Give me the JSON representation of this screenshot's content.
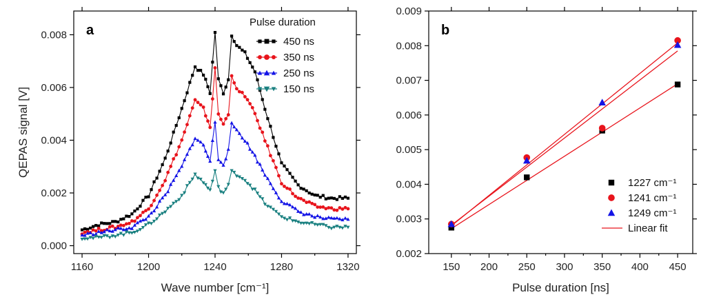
{
  "chart_data": [
    {
      "type": "line",
      "panel_label": "a",
      "xlabel": "Wave number [cm⁻¹]",
      "ylabel": "QEPAS signal [V]",
      "xlim": [
        1155,
        1325
      ],
      "ylim": [
        -0.0003,
        0.0089
      ],
      "xticks": [
        1160,
        1200,
        1240,
        1280,
        1320
      ],
      "yticks": [
        0.0,
        0.002,
        0.004,
        0.006,
        0.008
      ],
      "ytick_labels": [
        "0.000",
        "0.002",
        "0.004",
        "0.006",
        "0.008"
      ],
      "legend_title": "Pulse duration",
      "legend_position": "top-right",
      "series": [
        {
          "name": "450 ns",
          "color": "#000000",
          "marker": "square",
          "x": [
            1160,
            1170,
            1180,
            1190,
            1200,
            1210,
            1220,
            1228,
            1233,
            1237,
            1240,
            1242,
            1245,
            1248,
            1250,
            1253,
            1258,
            1264,
            1270,
            1280,
            1290,
            1300,
            1310,
            1320
          ],
          "y": [
            0.0006,
            0.0008,
            0.0009,
            0.0012,
            0.0019,
            0.0033,
            0.0052,
            0.0068,
            0.0065,
            0.0058,
            0.0081,
            0.0063,
            0.0058,
            0.0063,
            0.008,
            0.0076,
            0.0073,
            0.0066,
            0.0052,
            0.0031,
            0.0023,
            0.0019,
            0.0018,
            0.0018
          ]
        },
        {
          "name": "350 ns",
          "color": "#e8141c",
          "marker": "circle",
          "x": [
            1160,
            1170,
            1180,
            1190,
            1200,
            1210,
            1220,
            1228,
            1233,
            1237,
            1240,
            1242,
            1245,
            1248,
            1250,
            1253,
            1258,
            1264,
            1270,
            1280,
            1290,
            1300,
            1310,
            1320
          ],
          "y": [
            0.0005,
            0.0006,
            0.0007,
            0.0009,
            0.0014,
            0.0025,
            0.004,
            0.0055,
            0.0052,
            0.0045,
            0.0067,
            0.005,
            0.0046,
            0.005,
            0.0065,
            0.0059,
            0.0057,
            0.005,
            0.004,
            0.0024,
            0.0018,
            0.0015,
            0.0014,
            0.0014
          ]
        },
        {
          "name": "250 ns",
          "color": "#1414e6",
          "marker": "triangle-up",
          "x": [
            1160,
            1170,
            1180,
            1190,
            1200,
            1210,
            1220,
            1228,
            1233,
            1237,
            1240,
            1242,
            1245,
            1248,
            1250,
            1253,
            1258,
            1264,
            1270,
            1280,
            1290,
            1300,
            1310,
            1320
          ],
          "y": [
            0.0004,
            0.0005,
            0.0006,
            0.0007,
            0.0011,
            0.0019,
            0.003,
            0.0041,
            0.0038,
            0.0032,
            0.0047,
            0.0033,
            0.0031,
            0.0036,
            0.0046,
            0.0044,
            0.004,
            0.0034,
            0.0027,
            0.0017,
            0.0013,
            0.0011,
            0.001,
            0.001
          ]
        },
        {
          "name": "150 ns",
          "color": "#1a8080",
          "marker": "triangle-down",
          "x": [
            1160,
            1170,
            1180,
            1190,
            1200,
            1210,
            1220,
            1228,
            1233,
            1237,
            1240,
            1242,
            1245,
            1248,
            1250,
            1253,
            1258,
            1264,
            1270,
            1280,
            1290,
            1300,
            1310,
            1320
          ],
          "y": [
            0.0003,
            0.0003,
            0.0004,
            0.0005,
            0.0008,
            0.0013,
            0.0019,
            0.0027,
            0.0024,
            0.0021,
            0.0028,
            0.0022,
            0.002,
            0.0023,
            0.0028,
            0.0027,
            0.0025,
            0.0021,
            0.0016,
            0.0011,
            0.0009,
            0.0008,
            0.0007,
            0.0007
          ]
        }
      ]
    },
    {
      "type": "scatter",
      "panel_label": "b",
      "xlabel": "Pulse duration [ns]",
      "ylabel": "",
      "xlim": [
        120,
        470
      ],
      "ylim": [
        0.002,
        0.009
      ],
      "xticks": [
        150,
        200,
        250,
        300,
        350,
        400,
        450
      ],
      "yticks": [
        0.002,
        0.003,
        0.004,
        0.005,
        0.006,
        0.007,
        0.008,
        0.009
      ],
      "ytick_labels": [
        "0.002",
        "0.003",
        "0.004",
        "0.005",
        "0.006",
        "0.007",
        "0.008",
        "0.009"
      ],
      "legend_position": "bottom-right",
      "series": [
        {
          "name": "1227 cm⁻¹",
          "color": "#000000",
          "marker": "square",
          "x": [
            150,
            250,
            350,
            450
          ],
          "y": [
            0.00275,
            0.0042,
            0.00555,
            0.00688
          ]
        },
        {
          "name": "1241 cm⁻¹",
          "color": "#e8141c",
          "marker": "circle",
          "x": [
            150,
            250,
            350,
            450
          ],
          "y": [
            0.00285,
            0.00477,
            0.00562,
            0.00815
          ]
        },
        {
          "name": "1249 cm⁻¹",
          "color": "#1414e6",
          "marker": "triangle-up",
          "x": [
            150,
            250,
            350,
            450
          ],
          "y": [
            0.00285,
            0.00468,
            0.00636,
            0.00802
          ]
        }
      ],
      "fits": [
        {
          "name": "Linear fit",
          "color": "#e8141c",
          "x": [
            150,
            450
          ],
          "y": [
            0.00272,
            0.0069
          ]
        },
        {
          "name": "",
          "color": "#e8141c",
          "x": [
            150,
            450
          ],
          "y": [
            0.0028,
            0.00808
          ]
        },
        {
          "name": "",
          "color": "#e8141c",
          "x": [
            150,
            450
          ],
          "y": [
            0.00282,
            0.00785
          ]
        }
      ]
    }
  ]
}
